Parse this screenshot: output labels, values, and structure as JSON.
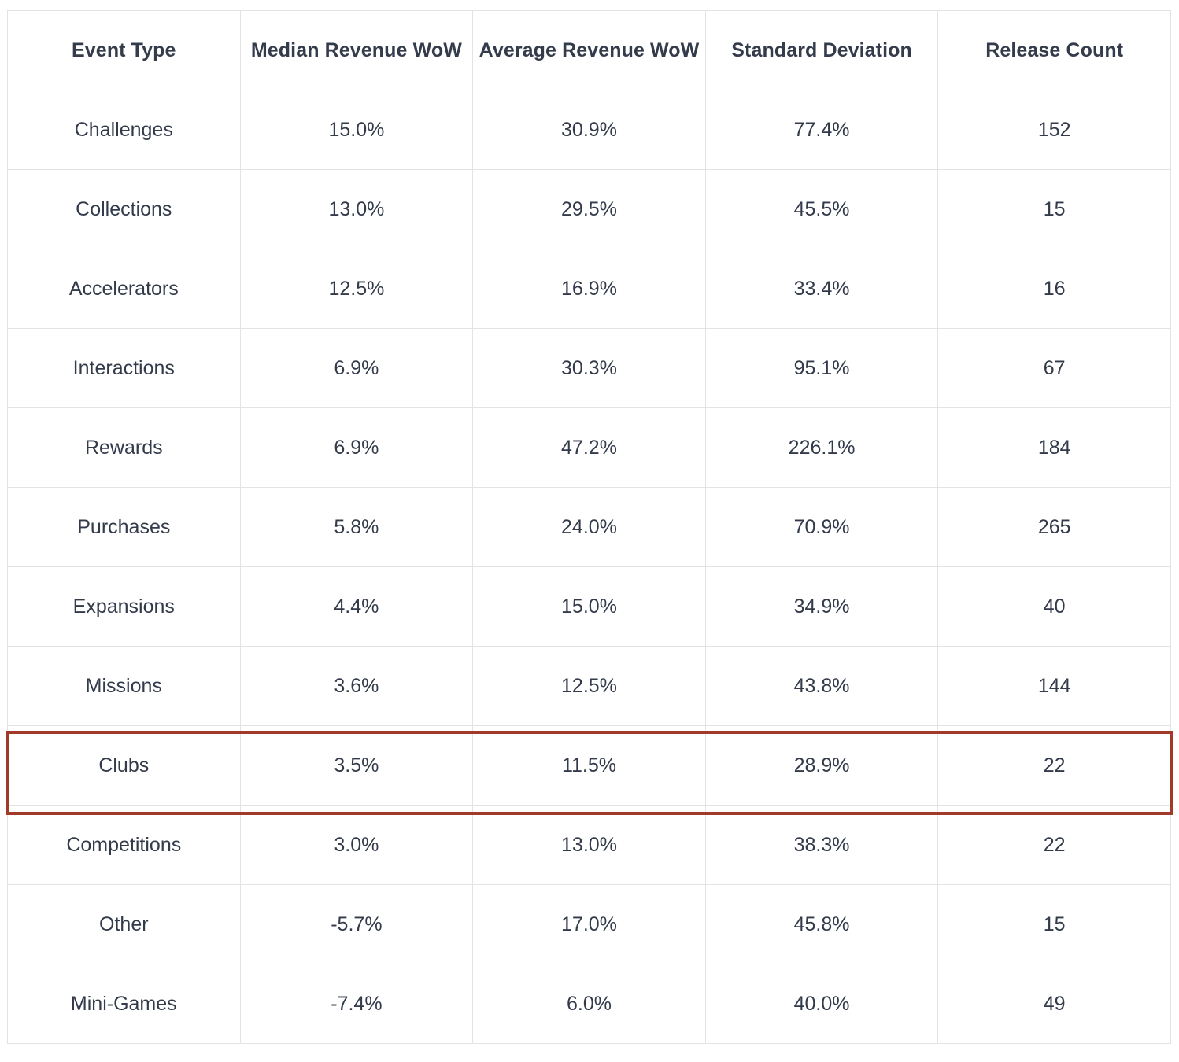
{
  "table": {
    "headers": [
      "Event Type",
      "Median Revenue WoW",
      "Average Revenue WoW",
      "Standard Deviation",
      "Release Count"
    ],
    "rows": [
      [
        "Challenges",
        "15.0%",
        "30.9%",
        "77.4%",
        "152"
      ],
      [
        "Collections",
        "13.0%",
        "29.5%",
        "45.5%",
        "15"
      ],
      [
        "Accelerators",
        "12.5%",
        "16.9%",
        "33.4%",
        "16"
      ],
      [
        "Interactions",
        "6.9%",
        "30.3%",
        "95.1%",
        "67"
      ],
      [
        "Rewards",
        "6.9%",
        "47.2%",
        "226.1%",
        "184"
      ],
      [
        "Purchases",
        "5.8%",
        "24.0%",
        "70.9%",
        "265"
      ],
      [
        "Expansions",
        "4.4%",
        "15.0%",
        "34.9%",
        "40"
      ],
      [
        "Missions",
        "3.6%",
        "12.5%",
        "43.8%",
        "144"
      ],
      [
        "Clubs",
        "3.5%",
        "11.5%",
        "28.9%",
        "22"
      ],
      [
        "Competitions",
        "3.0%",
        "13.0%",
        "38.3%",
        "22"
      ],
      [
        "Other",
        "-5.7%",
        "17.0%",
        "45.8%",
        "15"
      ],
      [
        "Mini-Games",
        "-7.4%",
        "6.0%",
        "40.0%",
        "49"
      ]
    ],
    "highlighted_row": "Clubs"
  },
  "colors": {
    "highlight_border": "#a23a2a",
    "grid_line": "#e3e3e3",
    "text": "#333b4b"
  }
}
